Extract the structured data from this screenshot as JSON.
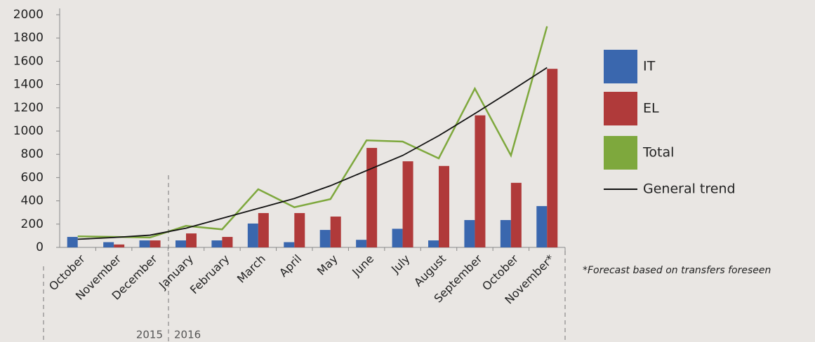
{
  "chart_data": {
    "type": "bar",
    "categories": [
      "October",
      "November",
      "December",
      "January",
      "February",
      "March",
      "April",
      "May",
      "June",
      "July",
      "August",
      "September",
      "October",
      "November*"
    ],
    "series": [
      {
        "name": "IT",
        "type": "bar",
        "color": "#3a67ae",
        "values": [
          90,
          45,
          60,
          60,
          60,
          205,
          45,
          150,
          65,
          160,
          60,
          235,
          235,
          355
        ]
      },
      {
        "name": "EL",
        "type": "bar",
        "color": "#b03a3a",
        "values": [
          0,
          25,
          60,
          120,
          90,
          295,
          295,
          265,
          855,
          740,
          700,
          1135,
          555,
          1535
        ]
      },
      {
        "name": "Total",
        "type": "line",
        "color": "#7ea83d",
        "values": [
          95,
          90,
          85,
          185,
          155,
          500,
          345,
          415,
          920,
          910,
          765,
          1365,
          790,
          1900
        ]
      },
      {
        "name": "General trend",
        "type": "line",
        "color": "#111111",
        "values": [
          70,
          85,
          105,
          165,
          250,
          335,
          420,
          530,
          660,
          790,
          960,
          1150,
          1345,
          1545
        ]
      }
    ],
    "ylim": [
      0,
      2000
    ],
    "yticks": [
      0,
      200,
      400,
      600,
      800,
      1000,
      1200,
      1400,
      1600,
      1800,
      2000
    ],
    "years": [
      "2015",
      "2016"
    ],
    "note": "*Forecast based on transfers foreseen"
  }
}
